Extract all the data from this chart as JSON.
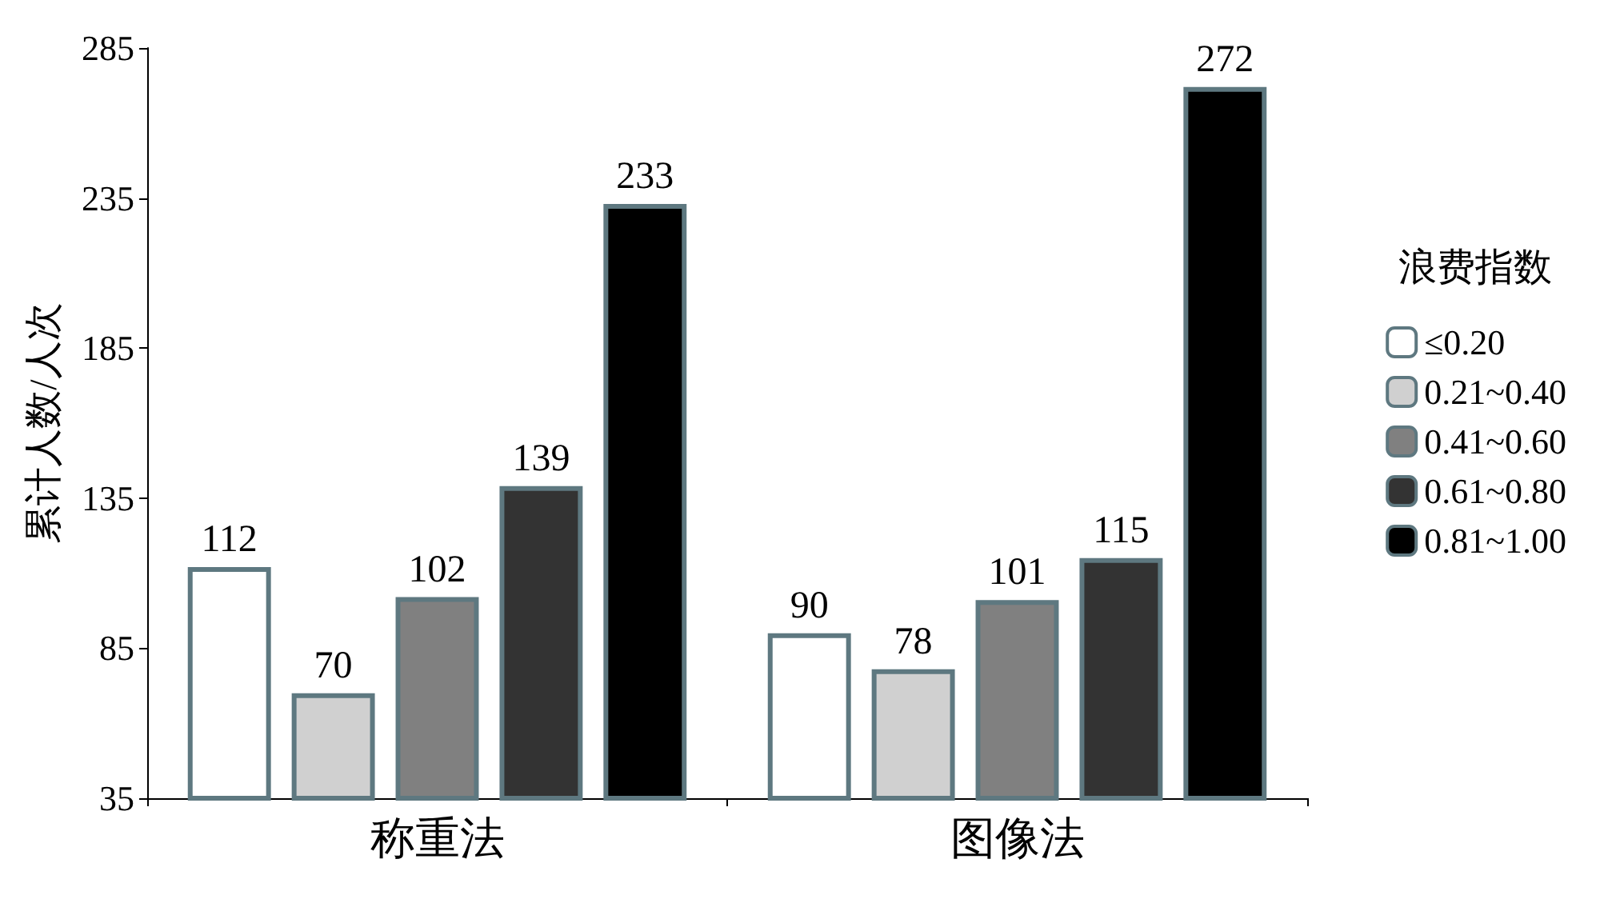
{
  "chart_data": {
    "type": "bar",
    "ylabel": "累计人数/人次",
    "legend_title": "浪费指数",
    "categories": [
      "称重法",
      "图像法"
    ],
    "series": [
      {
        "name": "≤0.20",
        "color": "#ffffff",
        "values": [
          112,
          90
        ]
      },
      {
        "name": "0.21~0.40",
        "color": "#d0d0d0",
        "values": [
          70,
          78
        ]
      },
      {
        "name": "0.41~0.60",
        "color": "#808080",
        "values": [
          102,
          101
        ]
      },
      {
        "name": "0.61~0.80",
        "color": "#333333",
        "values": [
          139,
          115
        ]
      },
      {
        "name": "0.81~1.00",
        "color": "#000000",
        "values": [
          233,
          272
        ]
      }
    ],
    "ylim": [
      35,
      285
    ],
    "yticks": [
      35,
      85,
      135,
      185,
      235,
      285
    ],
    "grid": false,
    "legend": "right",
    "data_labels": true
  }
}
